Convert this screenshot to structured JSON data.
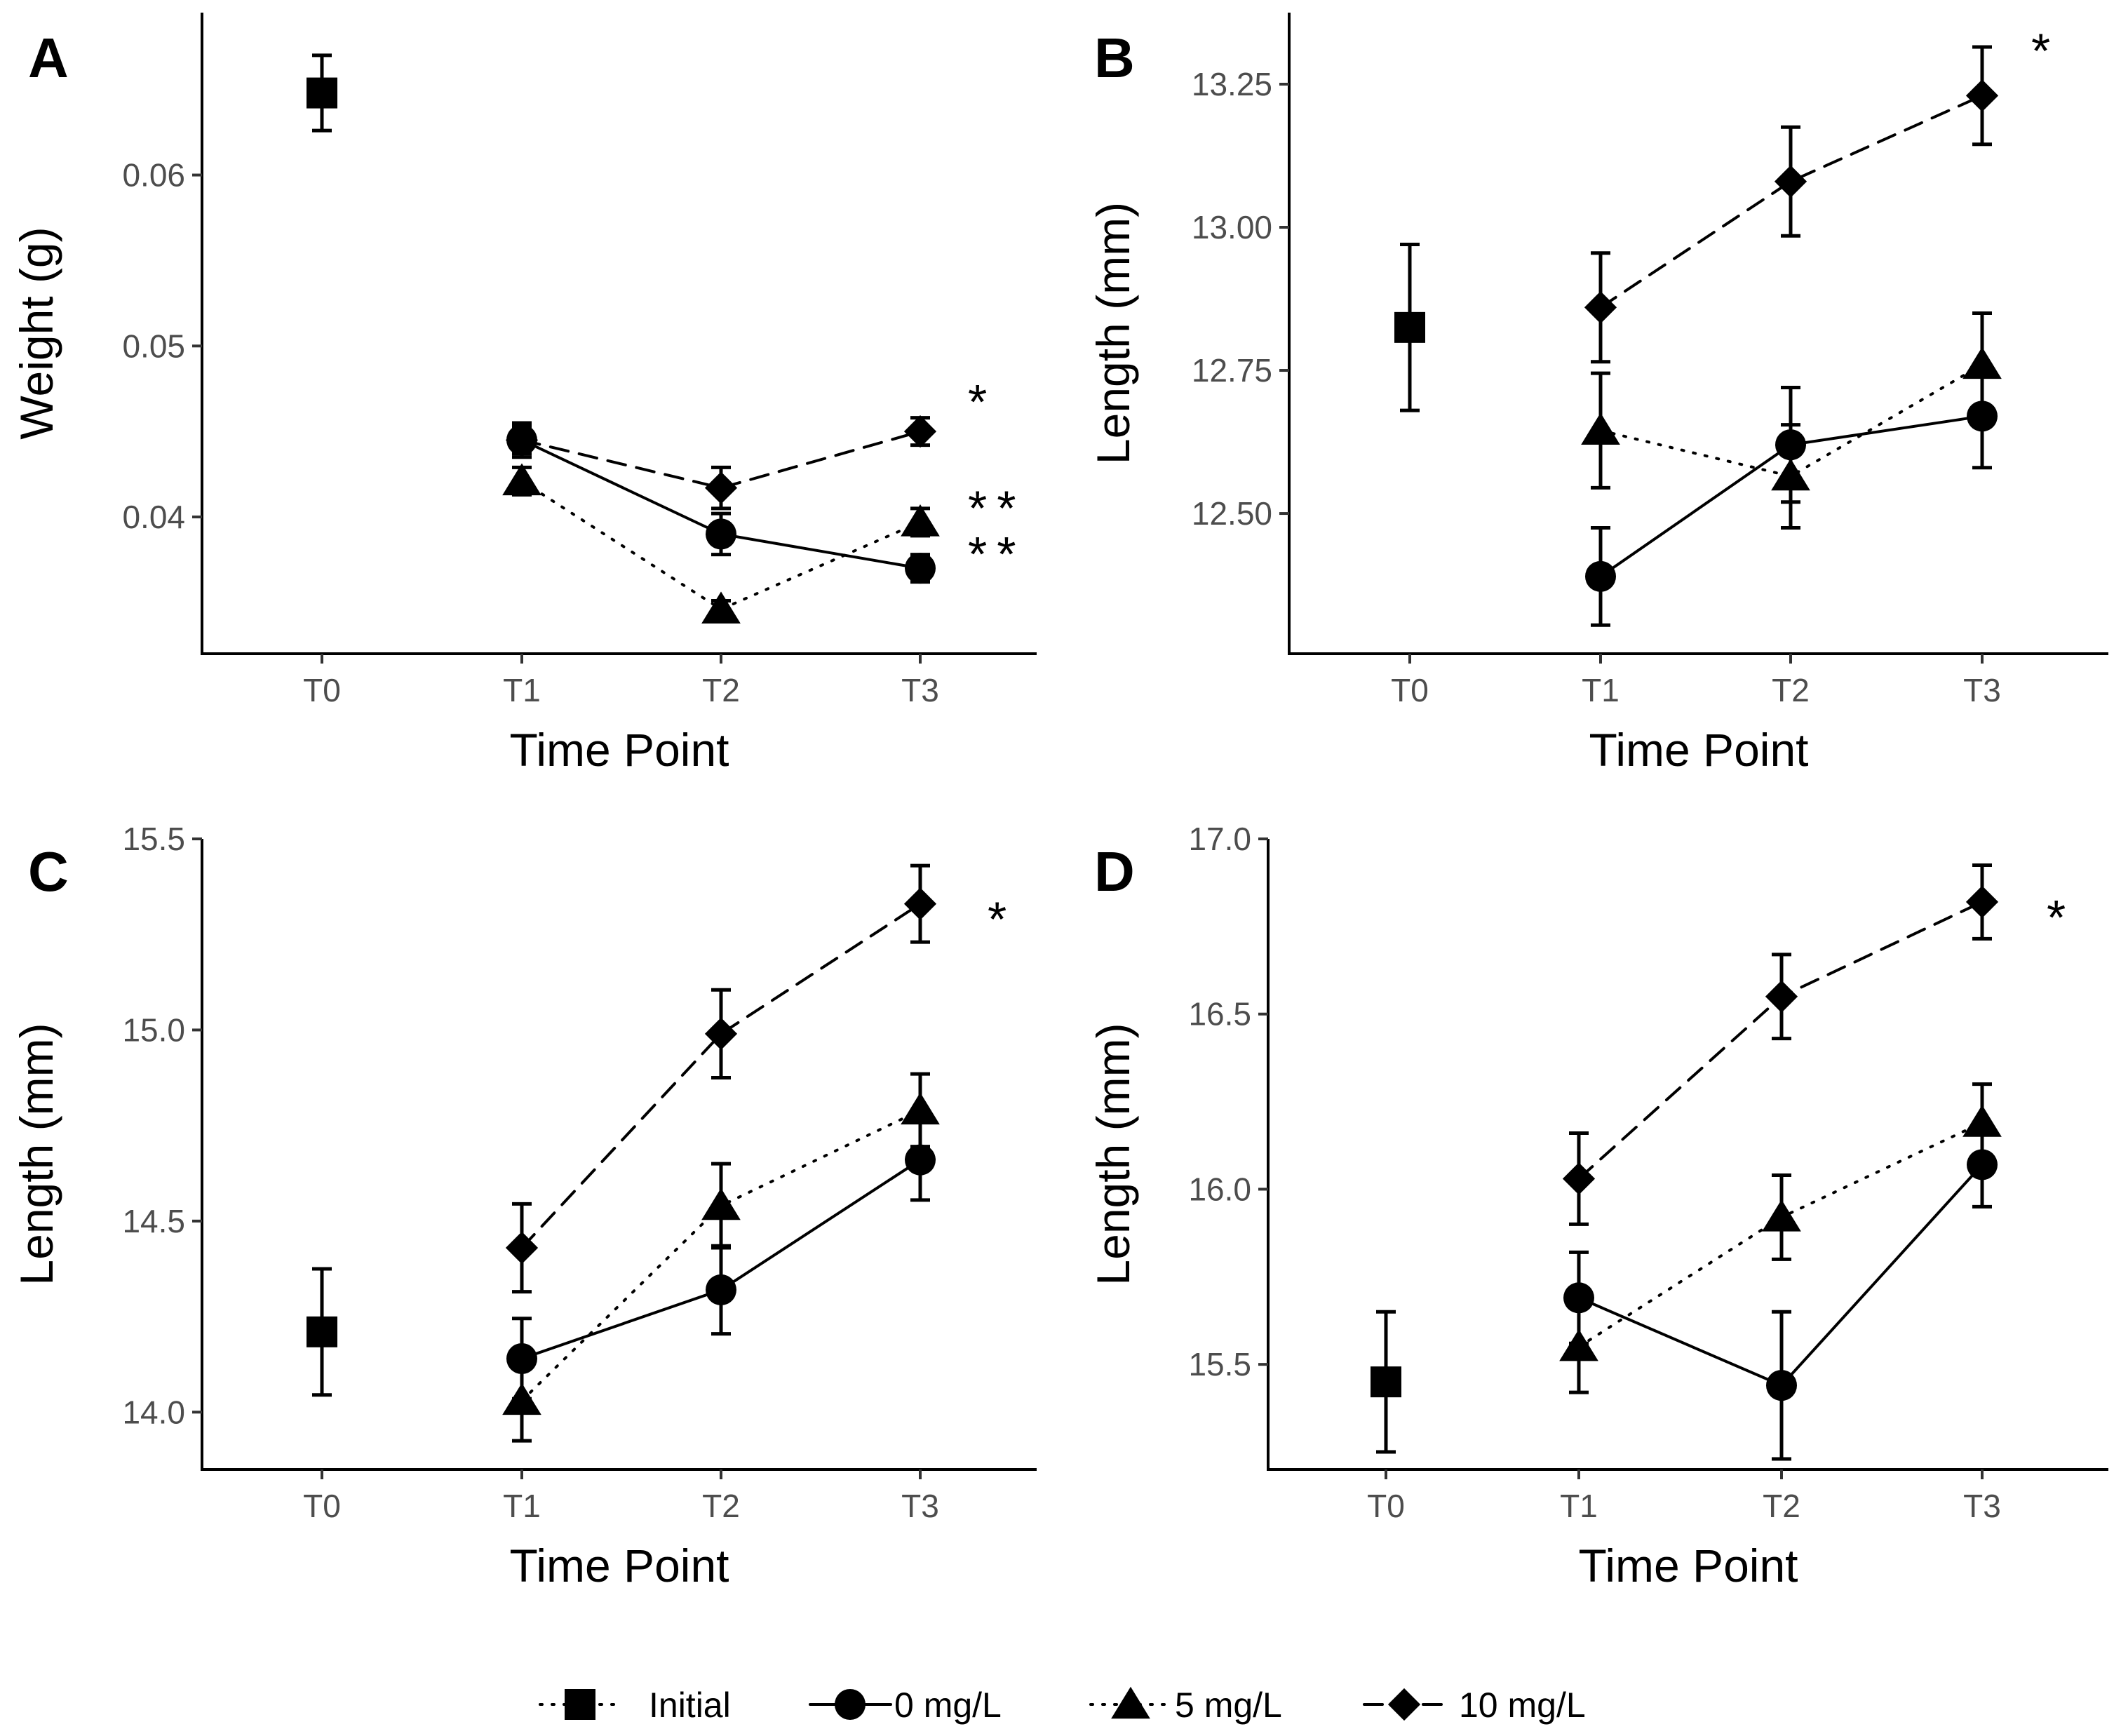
{
  "legend": {
    "items": [
      {
        "key": "initial",
        "label": "Initial",
        "shape": "square",
        "dash": "dotted"
      },
      {
        "key": "0mgL",
        "label": "0 mg/L",
        "shape": "circle",
        "dash": "solid"
      },
      {
        "key": "5mgL",
        "label": "5 mg/L",
        "shape": "triangle",
        "dash": "dotted"
      },
      {
        "key": "10mgL",
        "label": "10 mg/L",
        "shape": "diamond",
        "dash": "dashed"
      }
    ]
  },
  "chart_data": [
    {
      "panel": "A",
      "type": "line",
      "xlabel": "Time Point",
      "ylabel": "Weight (g)",
      "categories": [
        "T0",
        "T1",
        "T2",
        "T3"
      ],
      "ylim": [
        0.032,
        0.0695
      ],
      "yticks": [
        0.04,
        0.05,
        0.06
      ],
      "ytick_labels": [
        "0.04",
        "0.05",
        "0.06"
      ],
      "series": [
        {
          "name": "Initial",
          "points": [
            {
              "x": "T0",
              "y": 0.0648,
              "err": 0.0022
            }
          ]
        },
        {
          "name": "0 mg/L",
          "points": [
            {
              "x": "T1",
              "y": 0.0445,
              "err": 0.001
            },
            {
              "x": "T2",
              "y": 0.039,
              "err": 0.0012
            },
            {
              "x": "T3",
              "y": 0.037,
              "err": 0.0008
            }
          ]
        },
        {
          "name": "5 mg/L",
          "points": [
            {
              "x": "T1",
              "y": 0.0421,
              "err": 0.0008
            },
            {
              "x": "T2",
              "y": 0.0346,
              "err": 0.0005
            },
            {
              "x": "T3",
              "y": 0.0397,
              "err": 0.0008
            }
          ]
        },
        {
          "name": "10 mg/L",
          "points": [
            {
              "x": "T1",
              "y": 0.0445,
              "err": 0.0008
            },
            {
              "x": "T2",
              "y": 0.0417,
              "err": 0.0012
            },
            {
              "x": "T3",
              "y": 0.045,
              "err": 0.0008
            }
          ]
        }
      ],
      "annotations": [
        {
          "text": "*",
          "series": "10 mg/L"
        },
        {
          "text": "**",
          "series": "5 mg/L"
        },
        {
          "text": "**",
          "series": "0 mg/L"
        }
      ]
    },
    {
      "panel": "B",
      "type": "line",
      "xlabel": "Time Point",
      "ylabel": "Length (mm)",
      "categories": [
        "T0",
        "T1",
        "T2",
        "T3"
      ],
      "ylim": [
        12.255,
        13.375
      ],
      "yticks": [
        12.5,
        12.75,
        13.0,
        13.25
      ],
      "ytick_labels": [
        "12.50",
        "12.75",
        "13.00",
        "13.25"
      ],
      "series": [
        {
          "name": "Initial",
          "points": [
            {
              "x": "T0",
              "y": 12.825,
              "err": 0.145
            }
          ]
        },
        {
          "name": "0 mg/L",
          "points": [
            {
              "x": "T1",
              "y": 12.39,
              "err": 0.085
            },
            {
              "x": "T2",
              "y": 12.62,
              "err": 0.1
            },
            {
              "x": "T3",
              "y": 12.67,
              "err": 0.09
            }
          ]
        },
        {
          "name": "5 mg/L",
          "points": [
            {
              "x": "T1",
              "y": 12.645,
              "err": 0.1
            },
            {
              "x": "T2",
              "y": 12.565,
              "err": 0.09
            },
            {
              "x": "T3",
              "y": 12.76,
              "err": 0.09
            }
          ]
        },
        {
          "name": "10 mg/L",
          "points": [
            {
              "x": "T1",
              "y": 12.86,
              "err": 0.095
            },
            {
              "x": "T2",
              "y": 13.08,
              "err": 0.095
            },
            {
              "x": "T3",
              "y": 13.23,
              "err": 0.085
            }
          ]
        }
      ],
      "annotations": [
        {
          "text": "*",
          "series": "10 mg/L"
        }
      ]
    },
    {
      "panel": "C",
      "type": "line",
      "xlabel": "Time Point",
      "ylabel": "Length (mm)",
      "categories": [
        "T0",
        "T1",
        "T2",
        "T3"
      ],
      "ylim": [
        13.85,
        15.5
      ],
      "yticks": [
        14.0,
        14.5,
        15.0,
        15.5
      ],
      "ytick_labels": [
        "14.0",
        "14.5",
        "15.0",
        "15.5"
      ],
      "series": [
        {
          "name": "Initial",
          "points": [
            {
              "x": "T0",
              "y": 14.21,
              "err": 0.165
            }
          ]
        },
        {
          "name": "0 mg/L",
          "points": [
            {
              "x": "T1",
              "y": 14.14,
              "err": 0.105
            },
            {
              "x": "T2",
              "y": 14.32,
              "err": 0.115
            },
            {
              "x": "T3",
              "y": 14.66,
              "err": 0.105
            }
          ]
        },
        {
          "name": "5 mg/L",
          "points": [
            {
              "x": "T1",
              "y": 14.03,
              "err": 0.105
            },
            {
              "x": "T2",
              "y": 14.54,
              "err": 0.11
            },
            {
              "x": "T3",
              "y": 14.79,
              "err": 0.095
            }
          ]
        },
        {
          "name": "10 mg/L",
          "points": [
            {
              "x": "T1",
              "y": 14.43,
              "err": 0.115
            },
            {
              "x": "T2",
              "y": 14.99,
              "err": 0.115
            },
            {
              "x": "T3",
              "y": 15.33,
              "err": 0.1
            }
          ]
        }
      ],
      "annotations": [
        {
          "text": "*",
          "series": "10 mg/L"
        }
      ]
    },
    {
      "panel": "D",
      "type": "line",
      "xlabel": "Time Point",
      "ylabel": "Length (mm)",
      "categories": [
        "T0",
        "T1",
        "T2",
        "T3"
      ],
      "ylim": [
        15.2,
        17.0
      ],
      "yticks": [
        15.5,
        16.0,
        16.5,
        17.0
      ],
      "ytick_labels": [
        "15.5",
        "16.0",
        "16.5",
        "17.0"
      ],
      "series": [
        {
          "name": "Initial",
          "points": [
            {
              "x": "T0",
              "y": 15.45,
              "err": 0.2
            }
          ]
        },
        {
          "name": "0 mg/L",
          "points": [
            {
              "x": "T1",
              "y": 15.69,
              "err": 0.13
            },
            {
              "x": "T2",
              "y": 15.44,
              "err": 0.21
            },
            {
              "x": "T3",
              "y": 16.07,
              "err": 0.12
            }
          ]
        },
        {
          "name": "5 mg/L",
          "points": [
            {
              "x": "T1",
              "y": 15.55,
              "err": 0.13
            },
            {
              "x": "T2",
              "y": 15.92,
              "err": 0.12
            },
            {
              "x": "T3",
              "y": 16.19,
              "err": 0.11
            }
          ]
        },
        {
          "name": "10 mg/L",
          "points": [
            {
              "x": "T1",
              "y": 16.03,
              "err": 0.13
            },
            {
              "x": "T2",
              "y": 16.55,
              "err": 0.12
            },
            {
              "x": "T3",
              "y": 16.82,
              "err": 0.105
            }
          ]
        }
      ],
      "annotations": [
        {
          "text": "*",
          "series": "10 mg/L"
        }
      ]
    }
  ]
}
